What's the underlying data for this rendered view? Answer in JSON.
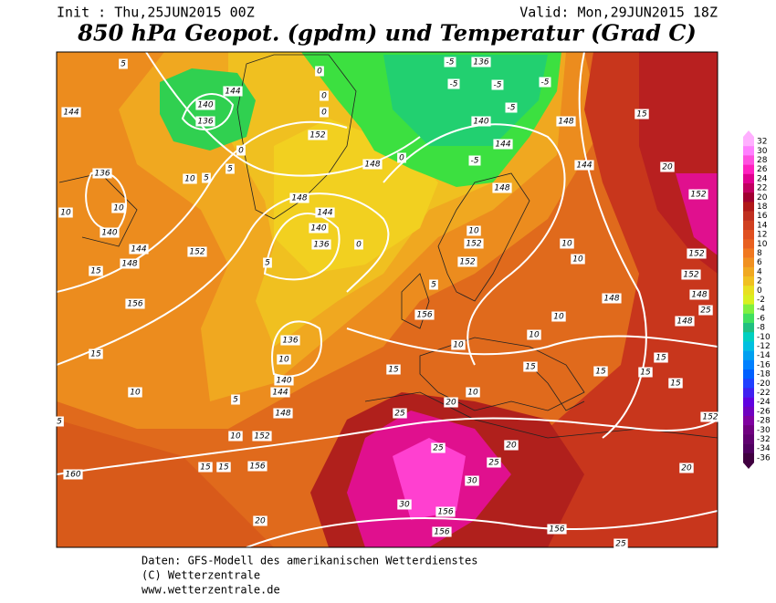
{
  "header": {
    "init": "Init : Thu,25JUN2015 00Z",
    "valid": "Valid: Mon,29JUN2015 18Z",
    "title": "850 hPa Geopot. (gpdm) und Temperatur (Grad C)"
  },
  "map": {
    "contour_labels": [
      "5",
      "144",
      "140",
      "136",
      "144",
      "5",
      "0",
      "0",
      "0",
      "136",
      "-5",
      "-5",
      "-5",
      "-5",
      "-5",
      "140",
      "148",
      "144",
      "152",
      "148",
      "0",
      "-5",
      "148",
      "144",
      "136",
      "10",
      "10",
      "148",
      "144",
      "140",
      "136",
      "0",
      "10",
      "140",
      "144",
      "148",
      "152",
      "15",
      "156",
      "5",
      "10",
      "152",
      "152",
      "10",
      "10",
      "15",
      "20",
      "152",
      "152",
      "152",
      "148",
      "25",
      "148",
      "156",
      "5",
      "148",
      "10",
      "10",
      "10",
      "136",
      "10",
      "140",
      "144",
      "148",
      "15",
      "10",
      "15",
      "15",
      "15",
      "15",
      "15",
      "15",
      "20",
      "10",
      "25",
      "152",
      "152",
      "10",
      "25",
      "20",
      "15",
      "15",
      "156",
      "160",
      "25",
      "30",
      "20",
      "30",
      "156",
      "156",
      "20",
      "156",
      "25",
      "5",
      "5",
      "0",
      "5"
    ]
  },
  "legend": {
    "ticks": [
      32,
      30,
      28,
      26,
      24,
      22,
      20,
      18,
      16,
      14,
      12,
      10,
      8,
      6,
      4,
      2,
      0,
      -2,
      -4,
      -6,
      -8,
      -10,
      -12,
      -14,
      -16,
      -18,
      -20,
      -22,
      -24,
      -26,
      -28,
      -30,
      -32,
      -34,
      -36
    ]
  },
  "footer": {
    "lines": [
      "Daten: GFS-Modell des amerikanischen Wetterdienstes",
      "(C) Wetterzentrale",
      "www.wetterzentrale.de"
    ]
  }
}
